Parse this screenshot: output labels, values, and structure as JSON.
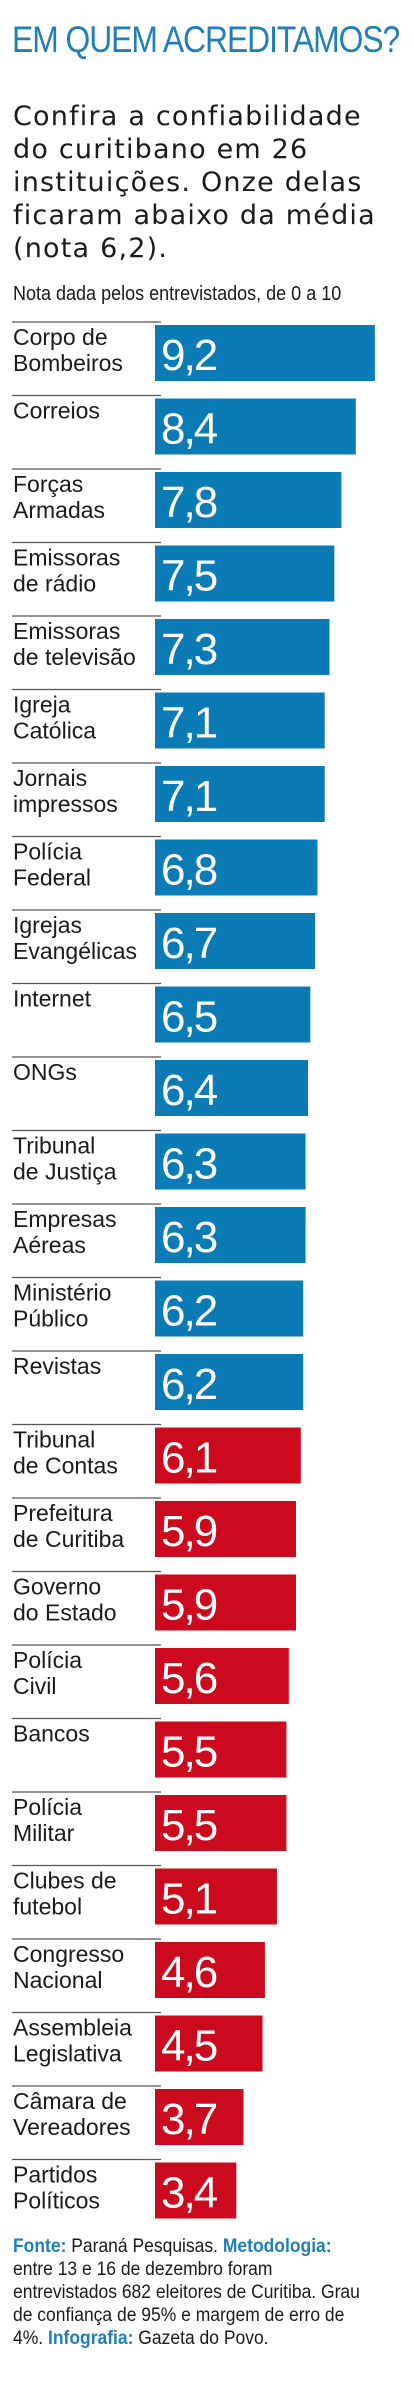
{
  "header": {
    "title": "EM QUEM ACREDITAMOS?",
    "subtitle": "Confira a confiabilidade do curitibano em 26 instituições. Onze delas ficaram abaixo da média (nota 6,2).",
    "axis_note": "Nota dada pelos entrevistados, de 0 a 10"
  },
  "colors": {
    "above_average": "#0a7bb5",
    "below_average": "#cc0a1e",
    "title": "#1f7fb6"
  },
  "chart_data": {
    "type": "bar",
    "orientation": "horizontal",
    "title": "EM QUEM ACREDITAMOS?",
    "xlabel": "Nota dada pelos entrevistados, de 0 a 10",
    "ylabel": "",
    "xlim": [
      0,
      10
    ],
    "average": 6.2,
    "categories": [
      "Corpo de Bombeiros",
      "Correios",
      "Forças Armadas",
      "Emissoras de rádio",
      "Emissoras de televisão",
      "Igreja Católica",
      "Jornais impressos",
      "Polícia Federal",
      "Igrejas Evangélicas",
      "Internet",
      "ONGs",
      "Tribunal de Justiça",
      "Empresas Aéreas",
      "Ministério Público",
      "Revistas",
      "Tribunal de Contas",
      "Prefeitura de Curitiba",
      "Governo do Estado",
      "Polícia Civil",
      "Bancos",
      "Polícia Militar",
      "Clubes de futebol",
      "Congresso Nacional",
      "Assembleia Legislativa",
      "Câmara de Vereadores",
      "Partidos Políticos"
    ],
    "label_lines": [
      [
        "Corpo de",
        "Bombeiros"
      ],
      [
        "Correios"
      ],
      [
        "Forças",
        "Armadas"
      ],
      [
        "Emissoras",
        "de rádio"
      ],
      [
        "Emissoras",
        "de televisão"
      ],
      [
        "Igreja",
        "Católica"
      ],
      [
        "Jornais",
        "impressos"
      ],
      [
        "Polícia",
        "Federal"
      ],
      [
        "Igrejas",
        "Evangélicas"
      ],
      [
        "Internet"
      ],
      [
        "ONGs"
      ],
      [
        "Tribunal",
        "de Justiça"
      ],
      [
        "Empresas",
        "Aéreas"
      ],
      [
        "Ministério",
        "Público"
      ],
      [
        "Revistas"
      ],
      [
        "Tribunal",
        "de Contas"
      ],
      [
        "Prefeitura",
        "de Curitiba"
      ],
      [
        "Governo",
        "do Estado"
      ],
      [
        "Polícia",
        "Civil"
      ],
      [
        "Bancos"
      ],
      [
        "Polícia",
        "Militar"
      ],
      [
        "Clubes de",
        "futebol"
      ],
      [
        "Congresso",
        "Nacional"
      ],
      [
        "Assembleia",
        "Legislativa"
      ],
      [
        "Câmara de",
        "Vereadores"
      ],
      [
        "Partidos",
        "Políticos"
      ]
    ],
    "values": [
      9.2,
      8.4,
      7.8,
      7.5,
      7.3,
      7.1,
      7.1,
      6.8,
      6.7,
      6.5,
      6.4,
      6.3,
      6.3,
      6.2,
      6.2,
      6.1,
      5.9,
      5.9,
      5.6,
      5.5,
      5.5,
      5.1,
      4.6,
      4.5,
      3.7,
      3.4
    ],
    "value_labels": [
      "9,2",
      "8,4",
      "7,8",
      "7,5",
      "7,3",
      "7,1",
      "7,1",
      "6,8",
      "6,7",
      "6,5",
      "6,4",
      "6,3",
      "6,3",
      "6,2",
      "6,2",
      "6,1",
      "5,9",
      "5,9",
      "5,6",
      "5,5",
      "5,5",
      "5,1",
      "4,6",
      "4,5",
      "3,7",
      "3,4"
    ],
    "legend": "none",
    "grid": false
  },
  "footer": {
    "source_label": "Fonte:",
    "source_text": " Paraná Pesquisas. ",
    "method_label": "Metodologia:",
    "method_text": " entre 13 e 16 de dezembro foram entrevistados 682 eleitores de Curitiba. Grau de confiança de 95% e margem de erro de 4%. ",
    "infographic_label": "Infografia:",
    "infographic_text": " Gazeta do Povo."
  }
}
